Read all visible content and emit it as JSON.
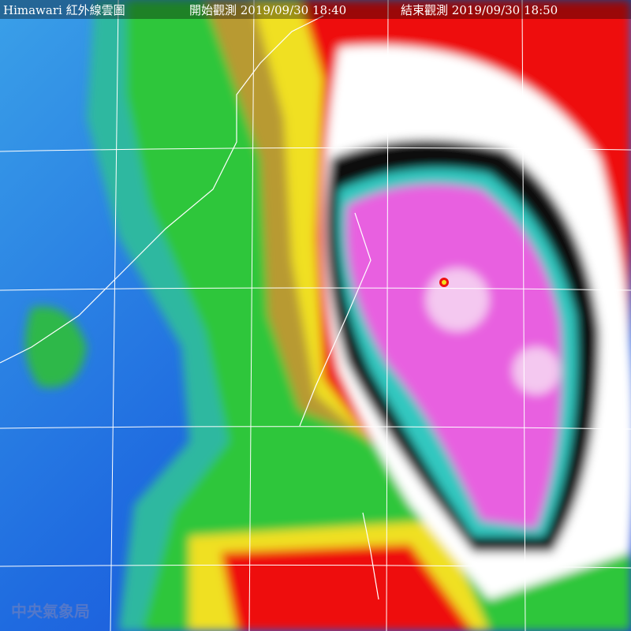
{
  "header": {
    "title": "Himawari 紅外線雲圖",
    "start": "開始觀測 2019/09/30 18:40",
    "end": "結束觀測 2019/09/30 18:50"
  },
  "watermark": "中央氣象局"
}
